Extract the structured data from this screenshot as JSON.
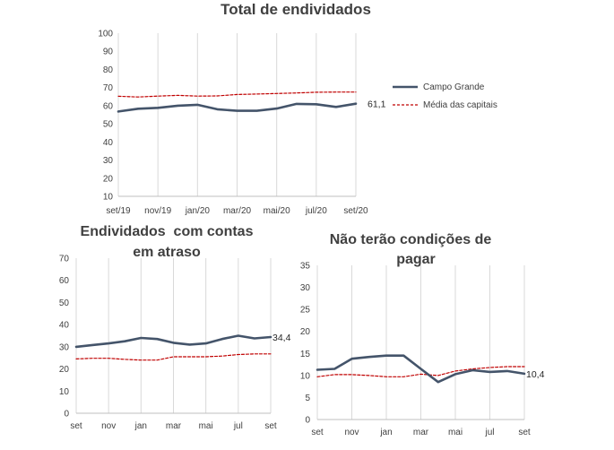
{
  "colors": {
    "primary_line": "#44546A",
    "reference_line": "#C00000",
    "grid": "#D9D9D9",
    "axis": "#BFBFBF",
    "text": "#404040"
  },
  "chart_data": [
    {
      "id": "total",
      "type": "line",
      "title": "Total de endividados",
      "title_lines": [
        "Total de endividados"
      ],
      "categories": [
        "set/19",
        "out/19",
        "nov/19",
        "dez/19",
        "jan/20",
        "fev/20",
        "mar/20",
        "abr/20",
        "mai/20",
        "jun/20",
        "jul/20",
        "ago/20",
        "set/20"
      ],
      "tick_labels": [
        "set/19",
        "",
        "nov/19",
        "",
        "jan/20",
        "",
        "mar/20",
        "",
        "mai/20",
        "",
        "jul/20",
        "",
        "set/20"
      ],
      "ylim": [
        10,
        100
      ],
      "yticks": [
        10,
        20,
        30,
        40,
        50,
        60,
        70,
        80,
        90,
        100
      ],
      "grid": "vertical",
      "series": [
        {
          "name": "Campo Grande",
          "style": "solid",
          "values": [
            56.8,
            58.3,
            58.8,
            60.0,
            60.5,
            58.0,
            57.2,
            57.2,
            58.4,
            61.0,
            60.8,
            59.3,
            61.1
          ]
        },
        {
          "name": "Média das capitais",
          "style": "dashed",
          "values": [
            65.2,
            64.8,
            65.3,
            65.7,
            65.3,
            65.4,
            66.2,
            66.4,
            66.7,
            67.0,
            67.4,
            67.5,
            67.5
          ]
        }
      ],
      "end_label": "61,1",
      "legend": "right"
    },
    {
      "id": "atraso",
      "type": "line",
      "title": "Endividados com contas em atraso",
      "title_lines": [
        "Endividados  com contas",
        "em atraso"
      ],
      "categories": [
        "set",
        "out",
        "nov",
        "dez",
        "jan",
        "fev",
        "mar",
        "abr",
        "mai",
        "jun",
        "jul",
        "ago",
        "set"
      ],
      "tick_labels": [
        "set",
        "",
        "nov",
        "",
        "jan",
        "",
        "mar",
        "",
        "mai",
        "",
        "jul",
        "",
        "set"
      ],
      "ylim": [
        0,
        70
      ],
      "yticks": [
        0,
        10,
        20,
        30,
        40,
        50,
        60,
        70
      ],
      "grid": "vertical",
      "series": [
        {
          "name": "Campo Grande",
          "style": "solid",
          "values": [
            30.0,
            30.8,
            31.5,
            32.5,
            34.0,
            33.5,
            31.8,
            31.0,
            31.5,
            33.5,
            35.0,
            33.8,
            34.4
          ]
        },
        {
          "name": "Média das capitais",
          "style": "dashed",
          "values": [
            24.5,
            24.8,
            24.8,
            24.3,
            24.0,
            24.0,
            25.5,
            25.5,
            25.5,
            25.8,
            26.5,
            26.8,
            26.8
          ]
        }
      ],
      "end_label": "34,4"
    },
    {
      "id": "pagar",
      "type": "line",
      "title": "Não terão condições de pagar",
      "title_lines": [
        "Não terão condições de",
        "pagar"
      ],
      "categories": [
        "set",
        "out",
        "nov",
        "dez",
        "jan",
        "fev",
        "mar",
        "abr",
        "mai",
        "jun",
        "jul",
        "ago",
        "set"
      ],
      "tick_labels": [
        "set",
        "",
        "nov",
        "",
        "jan",
        "",
        "mar",
        "",
        "mai",
        "",
        "jul",
        "",
        "set"
      ],
      "ylim": [
        0,
        35
      ],
      "yticks": [
        0,
        5,
        10,
        15,
        20,
        25,
        30,
        35
      ],
      "grid": "vertical",
      "series": [
        {
          "name": "Campo Grande",
          "style": "solid",
          "values": [
            11.3,
            11.5,
            13.8,
            14.2,
            14.5,
            14.5,
            11.5,
            8.5,
            10.3,
            11.2,
            10.8,
            11.0,
            10.4
          ]
        },
        {
          "name": "Média das capitais",
          "style": "dashed",
          "values": [
            9.7,
            10.2,
            10.2,
            10.0,
            9.7,
            9.7,
            10.3,
            10.0,
            11.0,
            11.5,
            11.8,
            12.0,
            12.0
          ]
        }
      ],
      "end_label": "10,4"
    }
  ]
}
